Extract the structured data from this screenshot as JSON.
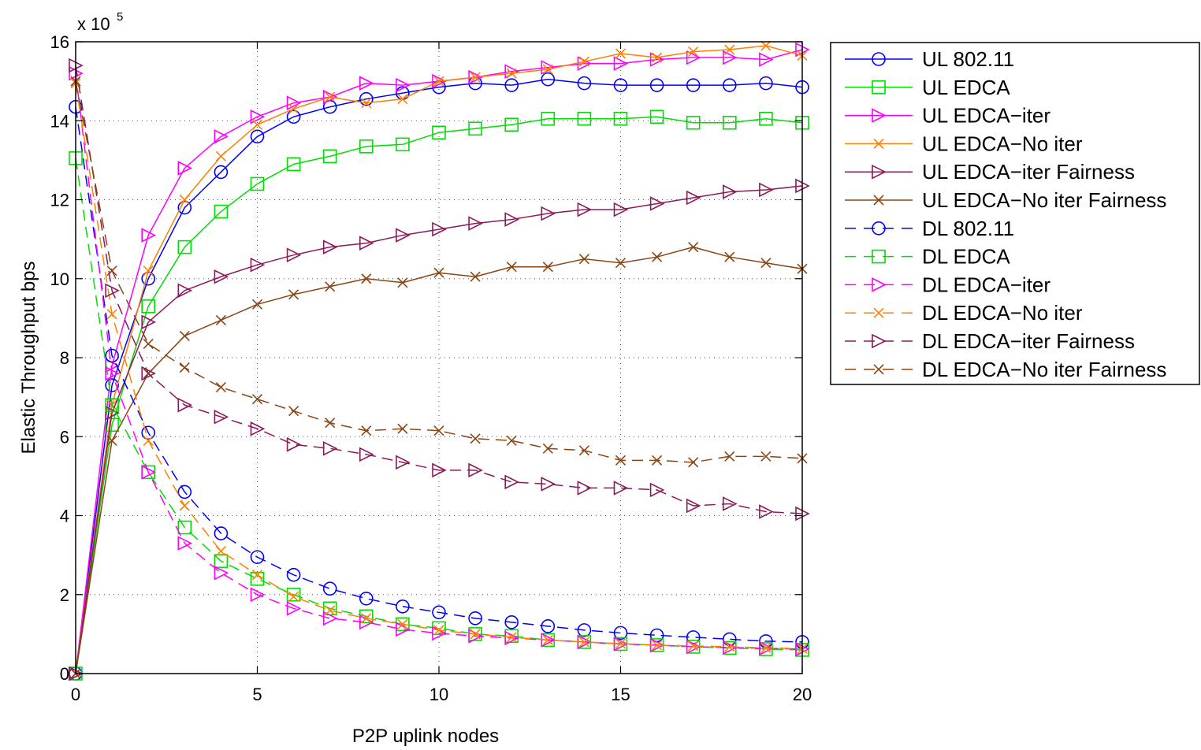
{
  "chart_data": {
    "type": "line",
    "title": "",
    "xlabel": "P2P uplink nodes",
    "ylabel": "Elastic Throughput bps",
    "y_exponent_label": "x 10",
    "y_exponent": "5",
    "xlim": [
      0,
      20
    ],
    "ylim": [
      0,
      16
    ],
    "y_scale_factor": 100000,
    "x_ticks": [
      0,
      5,
      10,
      15,
      20
    ],
    "y_ticks": [
      0,
      2,
      4,
      6,
      8,
      10,
      12,
      14,
      16
    ],
    "grid": true,
    "legend_position": "top-right outside",
    "x": [
      0,
      1,
      2,
      3,
      4,
      5,
      6,
      7,
      8,
      9,
      10,
      11,
      12,
      13,
      14,
      15,
      16,
      17,
      18,
      19,
      20
    ],
    "series": [
      {
        "name": "UL 802.11",
        "color": "#0000ff",
        "marker": "circle",
        "dash": "solid",
        "values": [
          0,
          7.3,
          10.0,
          11.8,
          12.7,
          13.6,
          14.1,
          14.35,
          14.55,
          14.7,
          14.85,
          14.95,
          14.9,
          15.05,
          14.95,
          14.9,
          14.9,
          14.9,
          14.9,
          14.95,
          14.85
        ]
      },
      {
        "name": "UL EDCA",
        "color": "#00dd00",
        "marker": "square",
        "dash": "solid",
        "values": [
          0,
          6.3,
          9.3,
          10.8,
          11.7,
          12.4,
          12.9,
          13.1,
          13.35,
          13.4,
          13.7,
          13.8,
          13.9,
          14.05,
          14.05,
          14.05,
          14.1,
          13.95,
          13.95,
          14.05,
          13.95
        ]
      },
      {
        "name": "UL EDCA−iter",
        "color": "#ff00ff",
        "marker": "triangle-right",
        "dash": "solid",
        "values": [
          0,
          7.8,
          11.1,
          12.8,
          13.6,
          14.1,
          14.45,
          14.6,
          14.95,
          14.9,
          15.0,
          15.1,
          15.25,
          15.35,
          15.45,
          15.45,
          15.55,
          15.6,
          15.6,
          15.55,
          15.8
        ]
      },
      {
        "name": "UL EDCA−No iter",
        "color": "#ff8000",
        "marker": "x",
        "dash": "solid",
        "values": [
          0,
          6.8,
          10.2,
          12.0,
          13.1,
          13.9,
          14.3,
          14.6,
          14.45,
          14.55,
          15.0,
          15.1,
          15.2,
          15.3,
          15.5,
          15.7,
          15.6,
          15.75,
          15.8,
          15.9,
          15.65
        ]
      },
      {
        "name": "UL EDCA−iter Fairness",
        "color": "#8b1a5a",
        "marker": "triangle-right",
        "dash": "solid",
        "values": [
          0,
          6.6,
          8.9,
          9.7,
          10.05,
          10.35,
          10.6,
          10.8,
          10.9,
          11.1,
          11.25,
          11.4,
          11.5,
          11.65,
          11.75,
          11.75,
          11.9,
          12.05,
          12.2,
          12.25,
          12.35
        ]
      },
      {
        "name": "UL EDCA−No iter Fairness",
        "color": "#8b4513",
        "marker": "x",
        "dash": "solid",
        "values": [
          0,
          5.9,
          7.6,
          8.55,
          8.95,
          9.35,
          9.6,
          9.8,
          10.0,
          9.9,
          10.15,
          10.05,
          10.3,
          10.3,
          10.5,
          10.4,
          10.55,
          10.8,
          10.55,
          10.4,
          10.25
        ]
      },
      {
        "name": "DL 802.11",
        "color": "#0000ff",
        "marker": "circle",
        "dash": "dashed",
        "values": [
          14.35,
          8.05,
          6.1,
          4.6,
          3.55,
          2.95,
          2.5,
          2.15,
          1.9,
          1.7,
          1.55,
          1.4,
          1.3,
          1.2,
          1.1,
          1.03,
          0.97,
          0.92,
          0.87,
          0.82,
          0.8
        ]
      },
      {
        "name": "DL EDCA",
        "color": "#00dd00",
        "marker": "square",
        "dash": "dashed",
        "values": [
          13.05,
          6.8,
          5.1,
          3.7,
          2.85,
          2.4,
          2.0,
          1.65,
          1.45,
          1.25,
          1.15,
          1.0,
          0.95,
          0.85,
          0.8,
          0.75,
          0.72,
          0.68,
          0.65,
          0.62,
          0.6
        ]
      },
      {
        "name": "DL EDCA−iter",
        "color": "#ff00ff",
        "marker": "triangle-right",
        "dash": "dashed",
        "values": [
          15.2,
          7.6,
          5.1,
          3.3,
          2.55,
          2.0,
          1.65,
          1.4,
          1.3,
          1.12,
          1.02,
          0.95,
          0.9,
          0.85,
          0.8,
          0.75,
          0.72,
          0.68,
          0.66,
          0.64,
          0.62
        ]
      },
      {
        "name": "DL EDCA−No iter",
        "color": "#ff8000",
        "marker": "x",
        "dash": "dashed",
        "values": [
          14.95,
          9.1,
          5.9,
          4.25,
          3.1,
          2.5,
          1.95,
          1.6,
          1.4,
          1.25,
          1.1,
          1.0,
          0.92,
          0.85,
          0.8,
          0.76,
          0.72,
          0.7,
          0.68,
          0.65,
          0.63
        ]
      },
      {
        "name": "DL EDCA−iter Fairness",
        "color": "#8b1a5a",
        "marker": "triangle-right",
        "dash": "dashed",
        "values": [
          15.4,
          9.7,
          7.6,
          6.8,
          6.5,
          6.2,
          5.8,
          5.7,
          5.55,
          5.35,
          5.15,
          5.15,
          4.85,
          4.8,
          4.7,
          4.7,
          4.65,
          4.25,
          4.3,
          4.1,
          4.05
        ]
      },
      {
        "name": "DL EDCA−No iter Fairness",
        "color": "#8b4513",
        "marker": "x",
        "dash": "dashed",
        "values": [
          15.0,
          10.2,
          8.35,
          7.75,
          7.25,
          6.95,
          6.65,
          6.35,
          6.15,
          6.2,
          6.15,
          5.95,
          5.9,
          5.7,
          5.65,
          5.4,
          5.4,
          5.35,
          5.5,
          5.5,
          5.45
        ]
      }
    ]
  }
}
